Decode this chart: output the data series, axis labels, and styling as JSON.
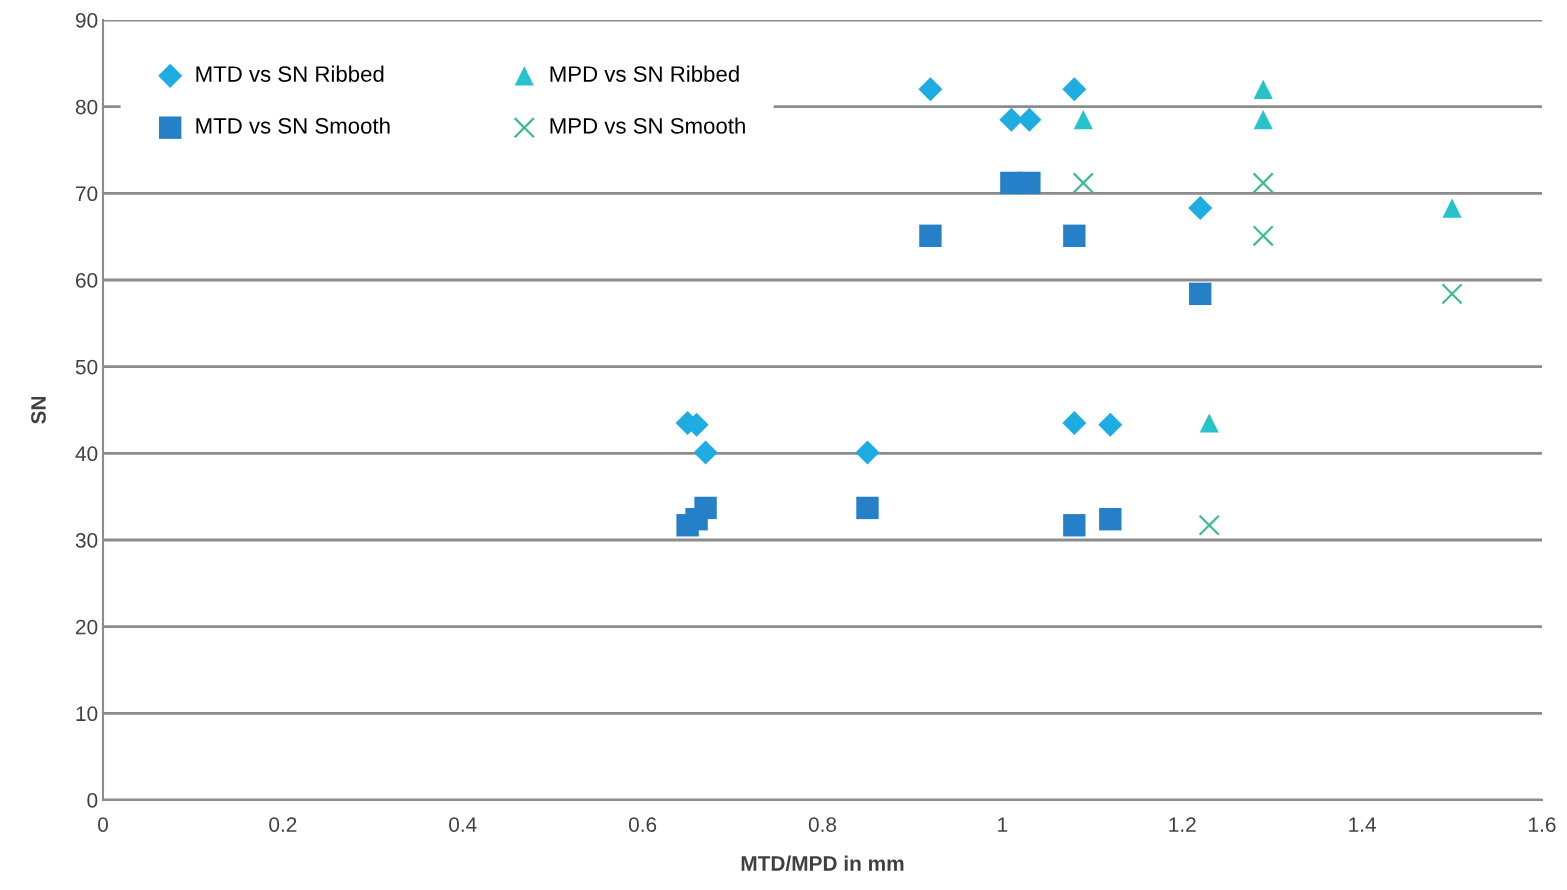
{
  "chart_data": {
    "type": "scatter",
    "xlabel": "MTD/MPD in mm",
    "ylabel": "SN",
    "xlim": [
      0,
      1.6
    ],
    "xticks": [
      0,
      0.2,
      0.4,
      0.6,
      0.8,
      1,
      1.2,
      1.4,
      1.6
    ],
    "ylim": [
      0,
      90
    ],
    "yticks": [
      0,
      10,
      20,
      30,
      40,
      50,
      60,
      70,
      80,
      90
    ],
    "grid": "y",
    "legend": "top left",
    "series": [
      {
        "name": "MTD vs SN Ribbed",
        "color": "#1eace2",
        "marker": "diamond",
        "x": [
          0.92,
          1.01,
          1.03,
          1.08,
          1.22,
          0.65,
          0.66,
          0.67,
          0.85,
          1.08,
          1.12
        ],
        "values": [
          82,
          78.5,
          78.5,
          82,
          68.3,
          43.5,
          43.3,
          40.1,
          40.1,
          43.5,
          43.3
        ]
      },
      {
        "name": "MTD vs SN Smooth",
        "color": "#2680c8",
        "marker": "square",
        "x": [
          0.92,
          1.01,
          1.03,
          1.08,
          1.22,
          0.65,
          0.66,
          0.67,
          0.85,
          1.08,
          1.12
        ],
        "values": [
          65.1,
          71.2,
          71.2,
          65.1,
          58.4,
          31.7,
          32.4,
          33.7,
          33.7,
          31.7,
          32.4
        ]
      },
      {
        "name": "MPD vs SN Ribbed",
        "color": "#26c3cb",
        "marker": "triangle",
        "x": [
          1.09,
          1.29,
          1.29,
          1.5,
          1.23
        ],
        "values": [
          78.5,
          82,
          78.5,
          68.3,
          43.5
        ]
      },
      {
        "name": "MPD vs SN Smooth",
        "color": "#3dbc94",
        "marker": "cross",
        "x": [
          1.09,
          1.29,
          1.29,
          1.5,
          1.23
        ],
        "values": [
          71.2,
          71.2,
          65.1,
          58.4,
          31.7
        ]
      }
    ]
  }
}
